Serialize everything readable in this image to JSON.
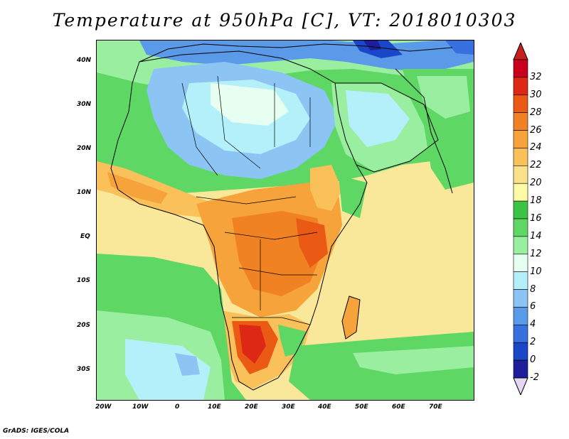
{
  "title": "Temperature at 950hPa [C], VT: 2018010303",
  "credit": "GrADS: IGES/COLA",
  "latitude_labels": [
    "40N",
    "30N",
    "20N",
    "10N",
    "EQ",
    "10S",
    "20S",
    "30S"
  ],
  "longitude_labels": [
    "20W",
    "10W",
    "0",
    "10E",
    "20E",
    "30E",
    "40E",
    "50E",
    "60E",
    "70E"
  ],
  "colorbar": {
    "labels": [
      "-2",
      "0",
      "2",
      "4",
      "6",
      "8",
      "10",
      "12",
      "14",
      "16",
      "18",
      "20",
      "22",
      "24",
      "26",
      "28",
      "30",
      "32"
    ],
    "colors": [
      "#1e1e9a",
      "#1a46c8",
      "#3870e0",
      "#5a9ae8",
      "#8cc4f4",
      "#b4f0fa",
      "#e6fff0",
      "#9aeea0",
      "#5ed764",
      "#3cc446",
      "#fffaa6",
      "#fae18a",
      "#fac05a",
      "#f5a33a",
      "#f08224",
      "#eb5a14",
      "#dc2814",
      "#c8001e"
    ],
    "under_color": "#e6d6f5",
    "over_color": "#c81e1e"
  },
  "map": {
    "ocean_default_color": "#fae89a",
    "regions": [
      {
        "name": "tropical-atlantic-warm",
        "color": "#fae89a"
      },
      {
        "name": "north-atlantic-green",
        "color": "#3cc446"
      },
      {
        "name": "sahara-cool",
        "color": "#8cc4f4"
      },
      {
        "name": "central-africa-hot",
        "color": "#f5a33a"
      },
      {
        "name": "namibia-hot",
        "color": "#eb5a14"
      },
      {
        "name": "south-atlantic-cool",
        "color": "#b4f0fa"
      },
      {
        "name": "arabia-cool",
        "color": "#9aeea0"
      },
      {
        "name": "indian-ocean-warm",
        "color": "#fae18a"
      }
    ]
  }
}
